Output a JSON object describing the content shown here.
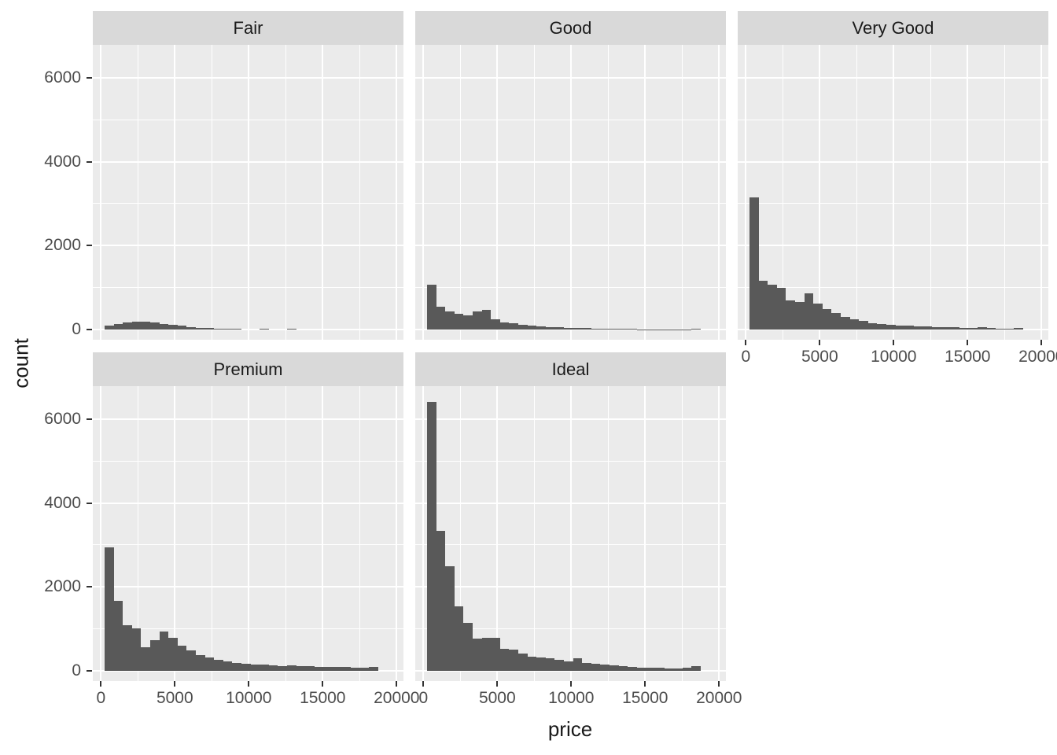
{
  "colors": {
    "bar": "#595959",
    "panel_background": "#EBEBEB",
    "strip_background": "#D9D9D9",
    "gridline": "#FFFFFF",
    "tick_mark": "#333333",
    "tick_label": "#4D4D4D",
    "title_text": "#1A1A1A",
    "page_background": "#FFFFFF"
  },
  "chart_data": {
    "type": "histogram",
    "title": "",
    "xlabel": "price",
    "ylabel": "count",
    "grid": true,
    "legend_position": "none",
    "facet_labels": [
      "Fair",
      "Good",
      "Very Good",
      "Premium",
      "Ideal"
    ],
    "x_ticks": [
      0,
      5000,
      10000,
      15000,
      20000
    ],
    "y_ticks": [
      0,
      2000,
      4000,
      6000
    ],
    "x_minor_ticks": [
      2500,
      7500,
      12500,
      17500
    ],
    "y_minor_ticks": [
      1000,
      3000,
      5000
    ],
    "xlim": [
      -550,
      20460
    ],
    "ylim": [
      -290,
      6790
    ],
    "bin_start": 250,
    "bin_width": 617,
    "facets": [
      {
        "label": "Fair",
        "counts": [
          90,
          135,
          165,
          185,
          190,
          165,
          140,
          115,
          85,
          60,
          45,
          32,
          22,
          15,
          10,
          0,
          0,
          20,
          0,
          0,
          20,
          0,
          0,
          0,
          0,
          0,
          0,
          0,
          0,
          0
        ]
      },
      {
        "label": "Good",
        "counts": [
          1070,
          545,
          432,
          376,
          338,
          432,
          470,
          244,
          169,
          150,
          118,
          94,
          75,
          60,
          48,
          40,
          34,
          30,
          12,
          26,
          15,
          12,
          10,
          8,
          7,
          6,
          5,
          5,
          4,
          15
        ]
      },
      {
        "label": "Very Good",
        "counts": [
          3140,
          1160,
          1065,
          990,
          700,
          657,
          858,
          620,
          482,
          388,
          307,
          244,
          200,
          157,
          131,
          113,
          100,
          88,
          78,
          68,
          60,
          54,
          48,
          42,
          38,
          60,
          33,
          26,
          20,
          35
        ]
      },
      {
        "label": "Premium",
        "counts": [
          2950,
          1660,
          1095,
          1010,
          557,
          740,
          945,
          780,
          607,
          482,
          376,
          326,
          269,
          232,
          194,
          175,
          157,
          144,
          130,
          118,
          125,
          112,
          105,
          100,
          95,
          90,
          85,
          80,
          75,
          88
        ]
      },
      {
        "label": "Ideal",
        "counts": [
          6410,
          3330,
          2500,
          1530,
          1140,
          765,
          795,
          795,
          532,
          513,
          407,
          344,
          326,
          294,
          263,
          219,
          294,
          188,
          169,
          144,
          125,
          106,
          94,
          81,
          75,
          69,
          63,
          56,
          70,
          120
        ]
      }
    ]
  }
}
